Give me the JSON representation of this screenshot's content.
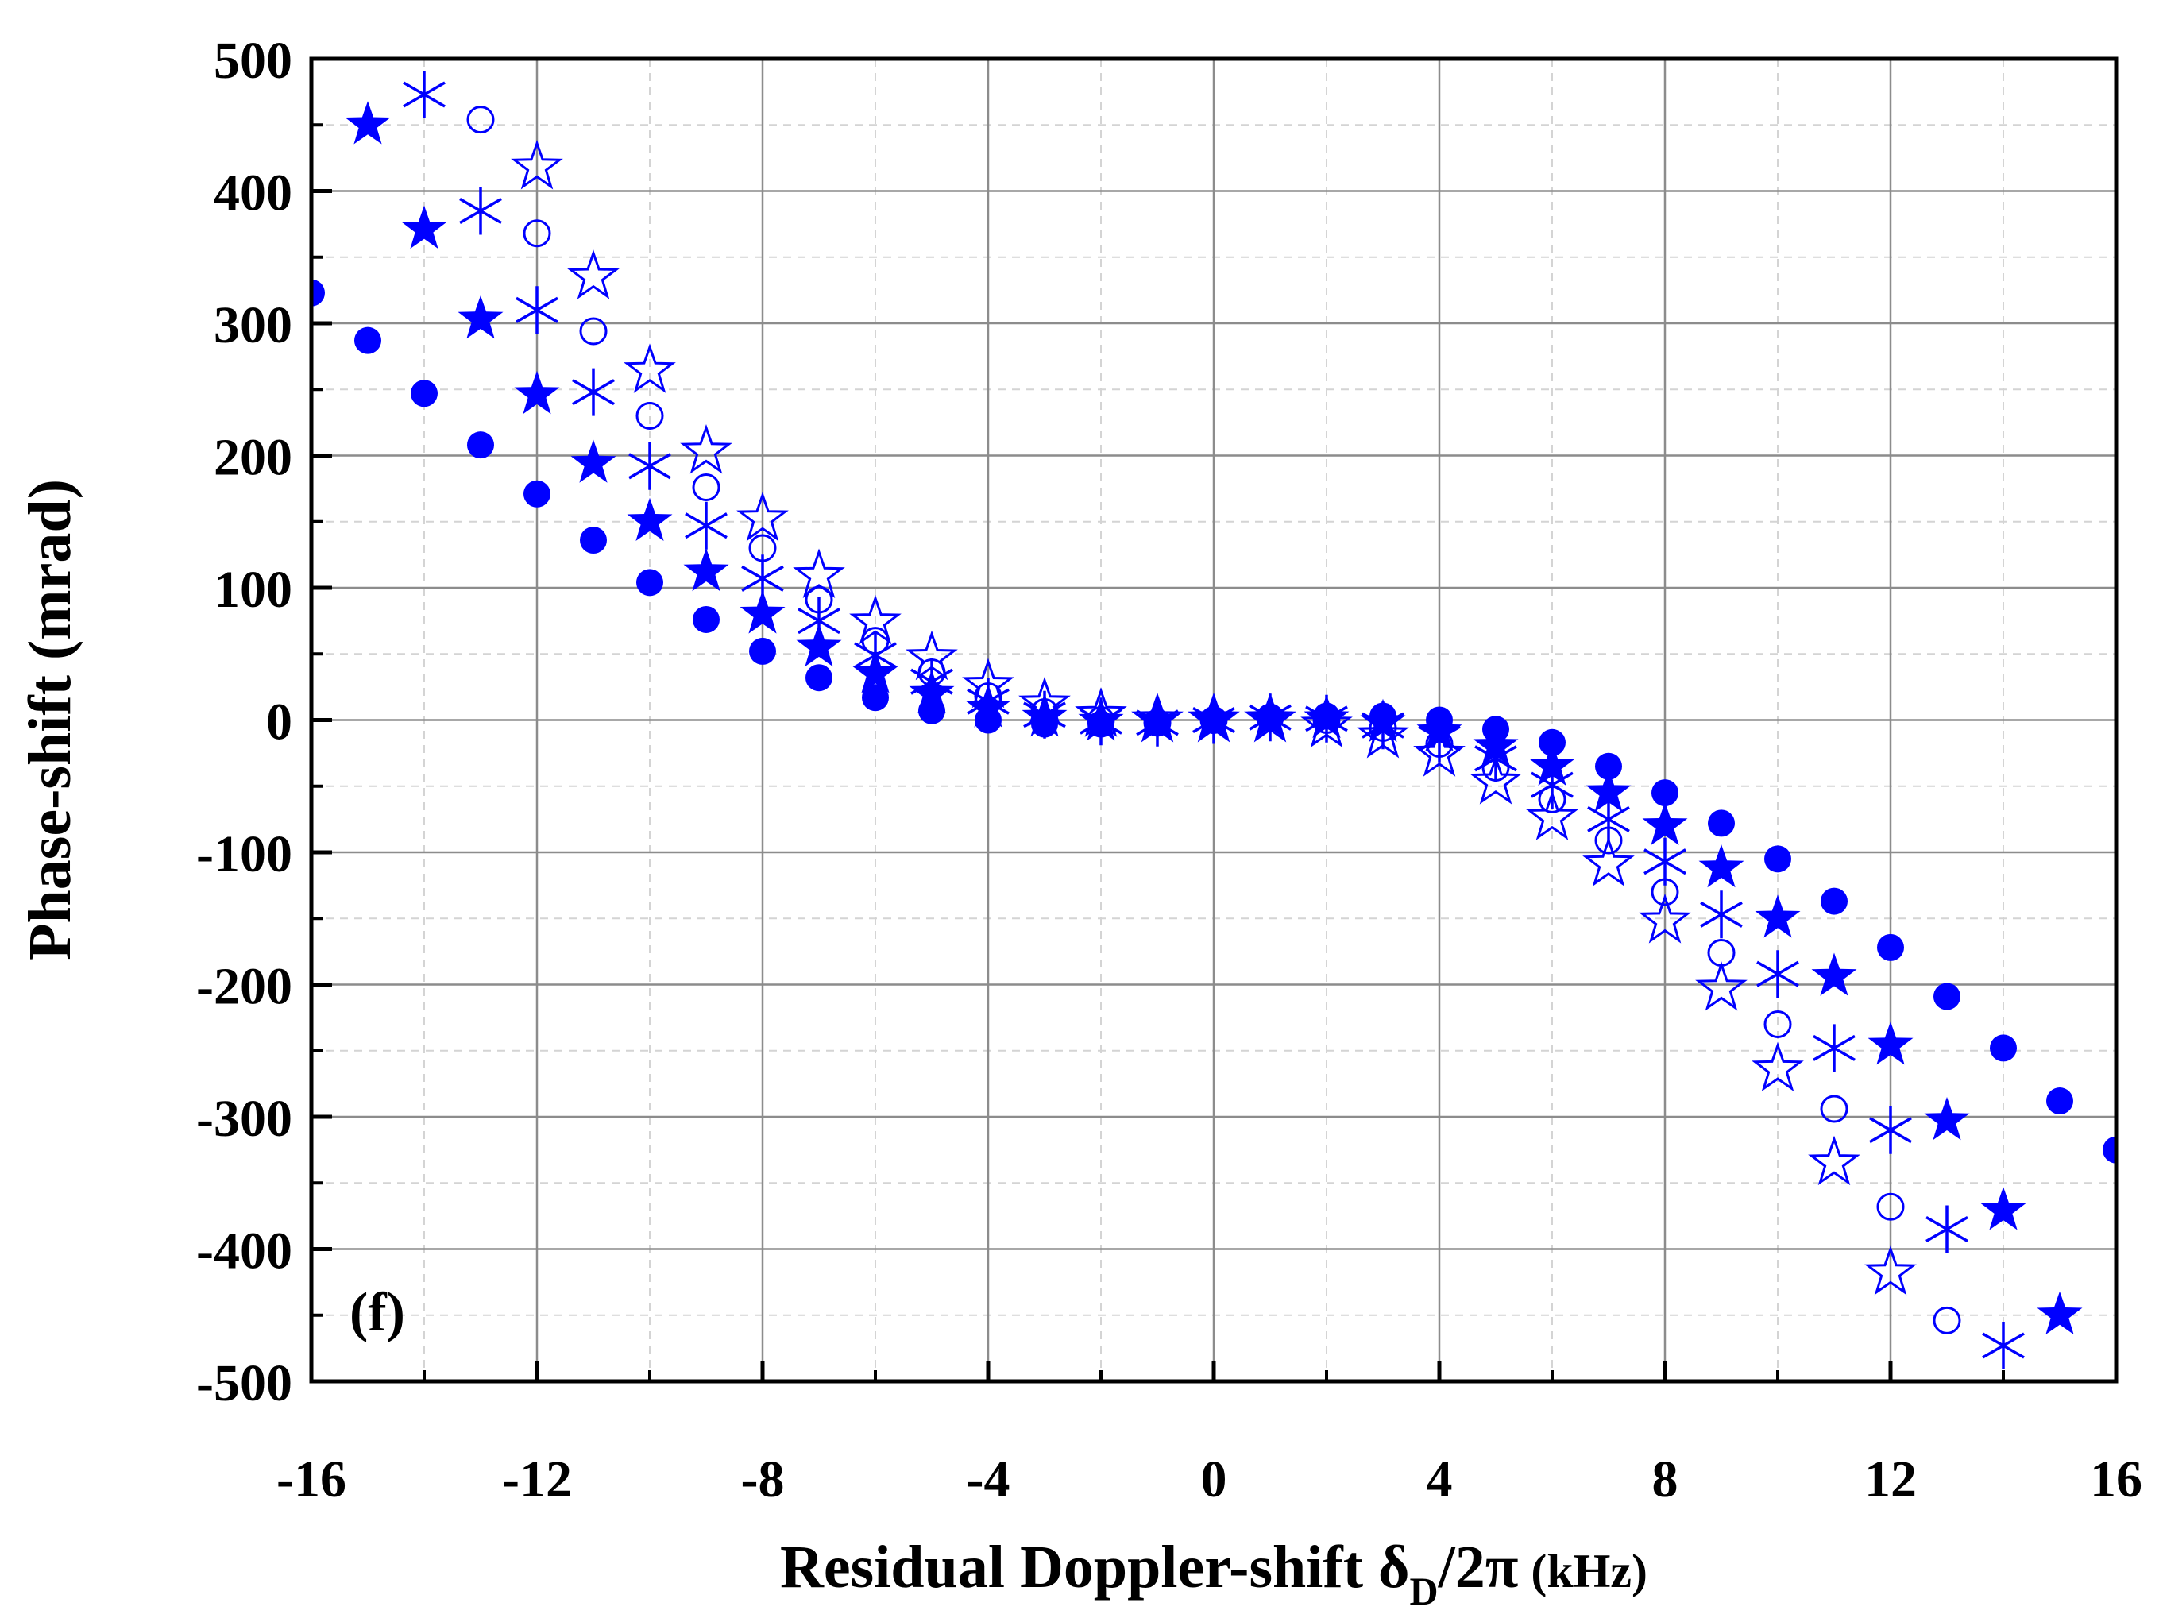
{
  "chart_data": {
    "type": "scatter",
    "title": "",
    "panel_label": "(f)",
    "xlabel": {
      "main": "Residual Doppler-shift δ",
      "subscript": "D",
      "after": "/2π",
      "unit": "(kHz)"
    },
    "ylabel": "Phase-shift (mrad)",
    "xlim": [
      -16,
      16
    ],
    "ylim": [
      -500,
      500
    ],
    "xticks": [
      -16,
      -12,
      -8,
      -4,
      0,
      4,
      8,
      12,
      16
    ],
    "yticks": [
      500,
      400,
      300,
      200,
      100,
      0,
      -100,
      -200,
      -300,
      -400,
      -500
    ],
    "grid": true,
    "marker_color": "#0000ff",
    "series": [
      {
        "name": "filled circles",
        "marker": "filled-circle",
        "x": [
          -16,
          -15,
          -14,
          -13,
          -12,
          -11,
          -10,
          -9,
          -8,
          -7,
          -6,
          -5,
          -4,
          -3,
          -2,
          -1,
          0,
          1,
          2,
          3,
          4,
          5,
          6,
          7,
          8,
          9,
          10,
          11,
          12,
          13,
          14,
          15,
          16
        ],
        "y": [
          323,
          287,
          247,
          208,
          171,
          136,
          104,
          76,
          52,
          32,
          17,
          7,
          0,
          -3,
          -3,
          -2,
          0,
          2,
          3,
          3,
          0,
          -7,
          -17,
          -35,
          -55,
          -78,
          -105,
          -137,
          -172,
          -209,
          -248,
          -288,
          -325
        ]
      },
      {
        "name": "filled stars",
        "marker": "filled-star",
        "x": [
          -15,
          -14,
          -13,
          -12,
          -11,
          -10,
          -9,
          -8,
          -7,
          -6,
          -5,
          -4,
          -3,
          -2,
          -1,
          0,
          1,
          2,
          3,
          4,
          5,
          6,
          7,
          8,
          9,
          10,
          11,
          12,
          13,
          14,
          15
        ],
        "y": [
          450,
          371,
          303,
          246,
          194,
          150,
          112,
          80,
          55,
          35,
          20,
          9,
          2,
          -1,
          -1,
          0,
          1,
          1,
          -2,
          -9,
          -20,
          -35,
          -55,
          -80,
          -112,
          -150,
          -194,
          -246,
          -303,
          -371,
          -450
        ]
      },
      {
        "name": "asterisks",
        "marker": "asterisk",
        "x": [
          -14,
          -13,
          -12,
          -11,
          -10,
          -9,
          -8,
          -7,
          -6,
          -5,
          -4,
          -3,
          -2,
          -1,
          0,
          1,
          2,
          3,
          4,
          5,
          6,
          7,
          8,
          9,
          10,
          11,
          12,
          13,
          14
        ],
        "y": [
          473,
          385,
          310,
          248,
          192,
          147,
          107,
          75,
          49,
          29,
          14,
          4,
          -1,
          -2,
          0,
          2,
          1,
          -4,
          -14,
          -29,
          -49,
          -75,
          -107,
          -147,
          -192,
          -248,
          -310,
          -385,
          -473
        ]
      },
      {
        "name": "open circles",
        "marker": "open-circle",
        "x": [
          -13,
          -12,
          -11,
          -10,
          -9,
          -8,
          -7,
          -6,
          -5,
          -4,
          -3,
          -2,
          -1,
          0,
          1,
          2,
          3,
          4,
          5,
          6,
          7,
          8,
          9,
          10,
          11,
          12,
          13
        ],
        "y": [
          454,
          368,
          294,
          230,
          176,
          130,
          91,
          60,
          36,
          18,
          6,
          0,
          -2,
          0,
          2,
          0,
          -6,
          -18,
          -36,
          -60,
          -91,
          -130,
          -176,
          -230,
          -294,
          -368,
          -454
        ]
      },
      {
        "name": "open stars",
        "marker": "open-star",
        "x": [
          -12,
          -11,
          -10,
          -9,
          -8,
          -7,
          -6,
          -5,
          -4,
          -3,
          -2,
          -1,
          0,
          1,
          2,
          3,
          4,
          5,
          6,
          7,
          8,
          9,
          10,
          11,
          12
        ],
        "y": [
          418,
          335,
          264,
          203,
          152,
          109,
          74,
          47,
          26,
          12,
          4,
          0,
          0,
          0,
          -4,
          -12,
          -26,
          -47,
          -74,
          -109,
          -152,
          -203,
          -264,
          -335,
          -418
        ]
      }
    ]
  }
}
